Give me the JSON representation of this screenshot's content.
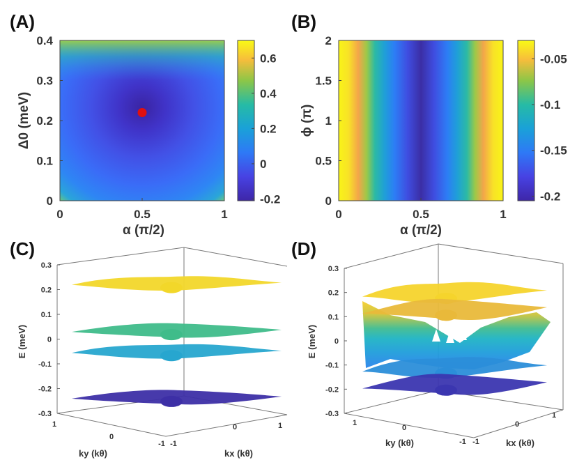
{
  "chart_data": [
    {
      "panel": "(A)",
      "type": "heatmap",
      "xlabel": "α (π/2)",
      "ylabel": "Δ0 (meV)",
      "xticks": [
        "0",
        "0.5",
        "1"
      ],
      "yticks": [
        "0",
        "0.1",
        "0.2",
        "0.3",
        "0.4"
      ],
      "xlim": [
        0,
        1
      ],
      "ylim": [
        0,
        0.4
      ],
      "colorbar_ticks": [
        "-0.2",
        "0",
        "0.2",
        "0.4",
        "0.6"
      ],
      "clim": [
        -0.21,
        0.7
      ],
      "minimum_marker": {
        "x": 0.5,
        "y": 0.22,
        "color": "#e01010"
      }
    },
    {
      "panel": "(B)",
      "type": "heatmap",
      "xlabel": "α (π/2)",
      "ylabel": "ϕ (π)",
      "xticks": [
        "0",
        "0.5",
        "1"
      ],
      "yticks": [
        "0",
        "0.5",
        "1",
        "1.5",
        "2"
      ],
      "xlim": [
        0,
        1
      ],
      "ylim": [
        0,
        2
      ],
      "colorbar_ticks": [
        "-0.2",
        "-0.15",
        "-0.1",
        "-0.05"
      ],
      "clim": [
        -0.205,
        -0.03
      ]
    },
    {
      "panel": "(C)",
      "type": "surface3d",
      "zlabel": "E (meV)",
      "xlabel": "kx (kθ)",
      "ylabel": "ky (kθ)",
      "zticks": [
        "-0.3",
        "-0.2",
        "-0.1",
        "0",
        "0.1",
        "0.2",
        "0.3"
      ],
      "xticks": [
        "-1",
        "0",
        "1"
      ],
      "yticks": [
        "1",
        "0",
        "-1"
      ],
      "zlim": [
        -0.3,
        0.3
      ],
      "bands": [
        {
          "name": "band 1",
          "energy": 0.225,
          "color": "#f2d72a"
        },
        {
          "name": "band 2",
          "energy": 0.035,
          "color": "#3fbc8a"
        },
        {
          "name": "band 3",
          "energy": -0.05,
          "color": "#27a6cf"
        },
        {
          "name": "band 4",
          "energy": -0.235,
          "color": "#3d2fa6"
        }
      ]
    },
    {
      "panel": "(D)",
      "type": "surface3d",
      "zlabel": "E (meV)",
      "xlabel": "kx (kθ)",
      "ylabel": "ky (kθ)",
      "zticks": [
        "-0.3",
        "-0.2",
        "-0.1",
        "0",
        "0.1",
        "0.2",
        "0.3"
      ],
      "xticks": [
        "-1",
        "0",
        "1"
      ],
      "yticks": [
        "1",
        "0",
        "-1"
      ],
      "zlim": [
        -0.3,
        0.3
      ],
      "bands": [
        {
          "name": "band 1",
          "energy": 0.2,
          "color": "#f5d42c"
        },
        {
          "name": "band 2",
          "energy": 0.13,
          "color": "#e9b93a"
        },
        {
          "name": "band 3",
          "energy": -0.11,
          "color": "#2b8ed9"
        },
        {
          "name": "band 4",
          "energy": -0.18,
          "color": "#3b36b0"
        }
      ]
    }
  ]
}
